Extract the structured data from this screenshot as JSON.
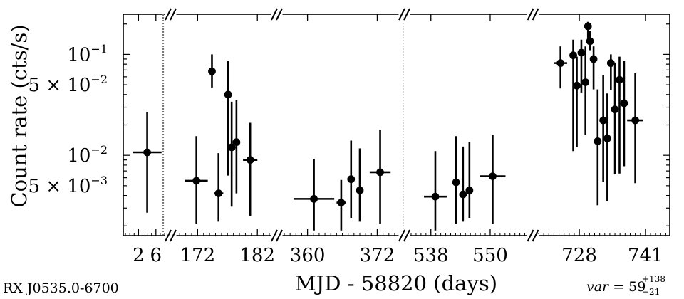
{
  "chart_data": {
    "type": "scatter",
    "ylabel": "Count rate (cts/s)",
    "xlabel": "MJD - 58820 (days)",
    "source_label": "RX J0535.0-6700",
    "var_label": {
      "name": "var",
      "value": "59",
      "sup": "+138",
      "sub": "−21"
    },
    "y_scale": "log",
    "ylim": [
      0.0016,
      0.25
    ],
    "y_tick_labels": [
      {
        "value": 0.1,
        "mant": "",
        "exp": "−1"
      },
      {
        "value": 0.05,
        "mant": "5 × ",
        "exp": "−2"
      },
      {
        "value": 0.01,
        "mant": "",
        "exp": "−2"
      },
      {
        "value": 0.005,
        "mant": "5 × ",
        "exp": "−3"
      }
    ],
    "segments": [
      {
        "xlim": [
          -1.5,
          8.0
        ],
        "ticks": [
          2,
          6
        ],
        "dotted_right": true,
        "points": [
          {
            "x": 4,
            "xerr": 3.3,
            "y": 0.0107,
            "ylo": 0.0027,
            "yhi": 0.027
          }
        ]
      },
      {
        "xlim": [
          168.5,
          184.0
        ],
        "ticks": [
          172,
          182
        ],
        "points": [
          {
            "x": 171.8,
            "xerr": 1.9,
            "y": 0.0056,
            "ylo": 0.0021,
            "yhi": 0.0155
          },
          {
            "x": 174.4,
            "xerr": 0,
            "y": 0.068,
            "ylo": 0.047,
            "yhi": 0.1
          },
          {
            "x": 175.5,
            "xerr": 0.8,
            "y": 0.0042,
            "ylo": 0.0022,
            "yhi": 0.0105
          },
          {
            "x": 177.1,
            "xerr": 0,
            "y": 0.04,
            "ylo": 0.0063,
            "yhi": 0.086
          },
          {
            "x": 177.7,
            "xerr": 0,
            "y": 0.012,
            "ylo": 0.0031,
            "yhi": 0.034
          },
          {
            "x": 178.5,
            "xerr": 0,
            "y": 0.0135,
            "ylo": 0.0042,
            "yhi": 0.035
          },
          {
            "x": 180.8,
            "xerr": 1.2,
            "y": 0.009,
            "ylo": 0.0025,
            "yhi": 0.021
          }
        ]
      },
      {
        "xlim": [
          356.0,
          375.5
        ],
        "ticks": [
          360,
          372
        ],
        "points": [
          {
            "x": 361.1,
            "xerr": 3.5,
            "y": 0.0037,
            "ylo": 0.0018,
            "yhi": 0.0092
          },
          {
            "x": 365.8,
            "xerr": 0.8,
            "y": 0.0034,
            "ylo": 0.0018,
            "yhi": 0.0057
          },
          {
            "x": 367.5,
            "xerr": 0,
            "y": 0.0058,
            "ylo": 0.0024,
            "yhi": 0.014
          },
          {
            "x": 369.0,
            "xerr": 0.6,
            "y": 0.0045,
            "ylo": 0.0022,
            "yhi": 0.0117
          },
          {
            "x": 372.5,
            "xerr": 1.8,
            "y": 0.0068,
            "ylo": 0.0021,
            "yhi": 0.018
          }
        ]
      },
      {
        "xlim": [
          534.0,
          557.5
        ],
        "ticks": [
          538,
          550
        ],
        "dotted_left": true,
        "points": [
          {
            "x": 538.9,
            "xerr": 2.3,
            "y": 0.0039,
            "ylo": 0.0018,
            "yhi": 0.011
          },
          {
            "x": 543.1,
            "xerr": 0,
            "y": 0.0054,
            "ylo": 0.0021,
            "yhi": 0.0155
          },
          {
            "x": 544.5,
            "xerr": 0.6,
            "y": 0.0041,
            "ylo": 0.0022,
            "yhi": 0.0122
          },
          {
            "x": 545.8,
            "xerr": 0,
            "y": 0.0045,
            "ylo": 0.0024,
            "yhi": 0.0135
          },
          {
            "x": 550.5,
            "xerr": 2.6,
            "y": 0.0062,
            "ylo": 0.0021,
            "yhi": 0.016
          }
        ]
      },
      {
        "xlim": [
          720.0,
          745.5
        ],
        "ticks": [
          728,
          741
        ],
        "points": [
          {
            "x": 724.3,
            "xerr": 1.3,
            "y": 0.082,
            "ylo": 0.046,
            "yhi": 0.12
          },
          {
            "x": 726.8,
            "xerr": 0,
            "y": 0.098,
            "ylo": 0.011,
            "yhi": 0.14
          },
          {
            "x": 727.5,
            "xerr": 0,
            "y": 0.049,
            "ylo": 0.012,
            "yhi": 0.095
          },
          {
            "x": 728.4,
            "xerr": 0,
            "y": 0.104,
            "ylo": 0.042,
            "yhi": 0.14
          },
          {
            "x": 729.2,
            "xerr": 0,
            "y": 0.053,
            "ylo": 0.016,
            "yhi": 0.12
          },
          {
            "x": 729.7,
            "xerr": 0,
            "y": 0.19,
            "ylo": 0.13,
            "yhi": 0.21
          },
          {
            "x": 730.1,
            "xerr": 0,
            "y": 0.135,
            "ylo": 0.11,
            "yhi": 0.17
          },
          {
            "x": 730.8,
            "xerr": 0,
            "y": 0.09,
            "ylo": 0.045,
            "yhi": 0.12
          },
          {
            "x": 731.6,
            "xerr": 0,
            "y": 0.0138,
            "ylo": 0.0032,
            "yhi": 0.045
          },
          {
            "x": 732.7,
            "xerr": 0,
            "y": 0.0222,
            "ylo": 0.0055,
            "yhi": 0.062
          },
          {
            "x": 733.5,
            "xerr": 0,
            "y": 0.0147,
            "ylo": 0.0035,
            "yhi": 0.041
          },
          {
            "x": 734.2,
            "xerr": 0,
            "y": 0.082,
            "ylo": 0.044,
            "yhi": 0.1
          },
          {
            "x": 735.0,
            "xerr": 0,
            "y": 0.0285,
            "ylo": 0.0065,
            "yhi": 0.083
          },
          {
            "x": 735.9,
            "xerr": 0,
            "y": 0.056,
            "ylo": 0.0066,
            "yhi": 0.095
          },
          {
            "x": 736.8,
            "xerr": 0,
            "y": 0.0328,
            "ylo": 0.0078,
            "yhi": 0.087
          },
          {
            "x": 739.0,
            "xerr": 1.6,
            "y": 0.0222,
            "ylo": 0.0053,
            "yhi": 0.065
          }
        ]
      }
    ]
  }
}
